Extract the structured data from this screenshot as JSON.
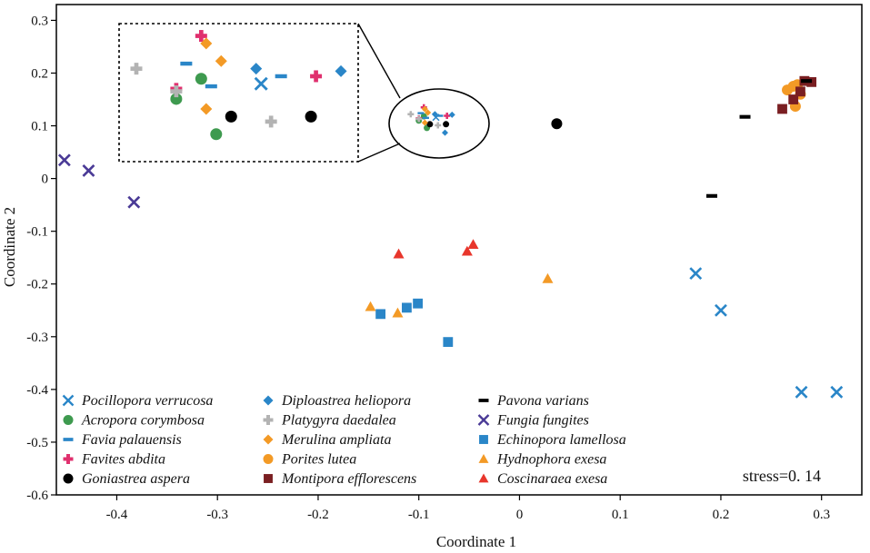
{
  "chart_data": {
    "type": "scatter",
    "xlabel": "Coordinate 1",
    "ylabel": "Coordinate 2",
    "xlim": [
      -0.46,
      0.34
    ],
    "ylim": [
      -0.6,
      0.33
    ],
    "xticks": [
      -0.4,
      -0.3,
      -0.2,
      -0.1,
      0,
      0.1,
      0.2,
      0.3
    ],
    "xtick_labels": [
      "-0.4",
      "-0.3",
      "-0.2",
      "-0.1",
      "0",
      "0.1",
      "0.2",
      "0.3"
    ],
    "yticks": [
      0.3,
      0.2,
      0.1,
      0,
      -0.1,
      -0.2,
      -0.3,
      -0.4,
      -0.5,
      -0.6
    ],
    "ytick_labels": [
      "0.3",
      "0.2",
      "0.1",
      "0",
      "-0.1",
      "-0.2",
      "-0.3",
      "-0.4",
      "-0.5",
      "-0.6"
    ],
    "annotation": "stress=0. 14",
    "inset": {
      "description": "magnified view of the central cluster",
      "xlim": [
        -0.11,
        -0.065
      ],
      "ylim": [
        0.088,
        0.137
      ]
    },
    "series": [
      {
        "name": "Pocillopora verrucosa",
        "marker": "x",
        "color": "#2a86c8",
        "points": [
          [
            0.175,
            -0.18
          ],
          [
            0.2,
            -0.25
          ],
          [
            0.28,
            -0.405
          ],
          [
            0.315,
            -0.405
          ],
          [
            -0.083,
            0.116
          ]
        ]
      },
      {
        "name": "Acropora corymbosa",
        "marker": "circle",
        "color": "#3e9a4f",
        "points": [
          [
            -0.1,
            0.11
          ],
          [
            -0.095,
            0.118
          ],
          [
            -0.092,
            0.096
          ]
        ]
      },
      {
        "name": "Favia palauensis",
        "marker": "dash",
        "color": "#2a86c8",
        "points": [
          [
            -0.098,
            0.124
          ],
          [
            -0.093,
            0.115
          ],
          [
            -0.079,
            0.119
          ]
        ]
      },
      {
        "name": "Favites abdita",
        "marker": "plus",
        "color": "#e0306e",
        "points": [
          [
            -0.1,
            0.114
          ],
          [
            -0.095,
            0.135
          ],
          [
            -0.072,
            0.119
          ]
        ]
      },
      {
        "name": "Goniastrea aspera",
        "marker": "circle",
        "color": "#000000",
        "points": [
          [
            -0.089,
            0.103
          ],
          [
            -0.073,
            0.103
          ],
          [
            0.037,
            0.104
          ]
        ]
      },
      {
        "name": "Diploastrea heliopora",
        "marker": "diamond",
        "color": "#2a86c8",
        "points": [
          [
            -0.084,
            0.122
          ],
          [
            -0.074,
            0.087
          ],
          [
            -0.067,
            0.121
          ]
        ]
      },
      {
        "name": "Platygyra daedalea",
        "marker": "plus",
        "color": "#b3b3b3",
        "points": [
          [
            -0.108,
            0.122
          ],
          [
            -0.1,
            0.113
          ],
          [
            -0.081,
            0.101
          ]
        ]
      },
      {
        "name": "Merulina ampliata",
        "marker": "diamond",
        "color": "#f39a26",
        "points": [
          [
            -0.094,
            0.132
          ],
          [
            -0.091,
            0.125
          ],
          [
            -0.094,
            0.106
          ]
        ]
      },
      {
        "name": "Porites lutea",
        "marker": "circle",
        "color": "#f39a26",
        "points": [
          [
            0.266,
            0.168
          ],
          [
            0.272,
            0.175
          ],
          [
            0.276,
            0.178
          ],
          [
            0.279,
            0.16
          ],
          [
            0.274,
            0.137
          ]
        ]
      },
      {
        "name": "Montipora efflorescens",
        "marker": "square",
        "color": "#7a1f22",
        "points": [
          [
            0.283,
            0.185
          ],
          [
            0.29,
            0.183
          ],
          [
            0.279,
            0.165
          ],
          [
            0.272,
            0.15
          ],
          [
            0.261,
            0.132
          ]
        ]
      },
      {
        "name": "Pavona varians",
        "marker": "dash",
        "color": "#000000",
        "points": [
          [
            0.285,
            0.185
          ],
          [
            0.224,
            0.117
          ],
          [
            0.191,
            -0.033
          ]
        ]
      },
      {
        "name": "Fungia fungites",
        "marker": "x",
        "color": "#4a3a96",
        "points": [
          [
            -0.452,
            0.035
          ],
          [
            -0.428,
            0.015
          ],
          [
            -0.383,
            -0.045
          ]
        ]
      },
      {
        "name": "Echinopora lamellosa",
        "marker": "square",
        "color": "#2a86c8",
        "points": [
          [
            -0.138,
            -0.257
          ],
          [
            -0.112,
            -0.245
          ],
          [
            -0.101,
            -0.237
          ],
          [
            -0.071,
            -0.31
          ]
        ]
      },
      {
        "name": "Hydnophora exesa",
        "marker": "triangle",
        "color": "#f39a26",
        "points": [
          [
            -0.148,
            -0.243
          ],
          [
            -0.121,
            -0.255
          ],
          [
            0.028,
            -0.19
          ]
        ]
      },
      {
        "name": "Coscinaraea exesa",
        "marker": "triangle",
        "color": "#e8362c",
        "points": [
          [
            -0.12,
            -0.143
          ],
          [
            -0.052,
            -0.138
          ],
          [
            -0.046,
            -0.125
          ]
        ]
      }
    ]
  }
}
